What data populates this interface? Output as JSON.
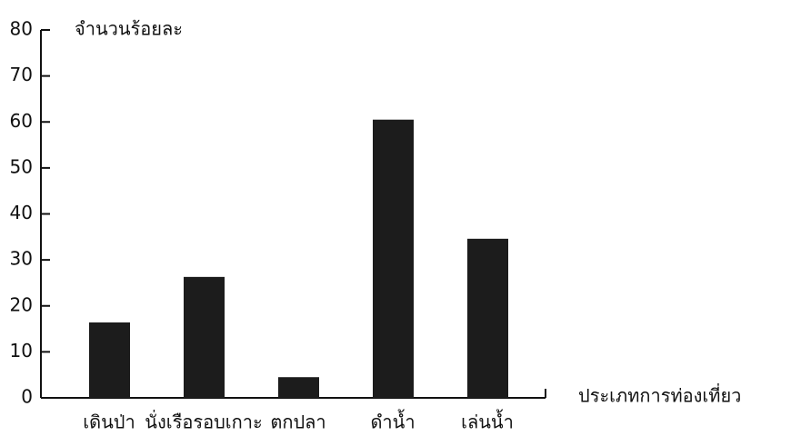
{
  "chart_data": {
    "type": "bar",
    "y_label": "จำนวนร้อยละ",
    "x_label": "ประเภทการท่องเที่ยว",
    "categories": [
      "เดินป่า",
      "นั่งเรือรอบเกาะ",
      "ตกปลา",
      "ดำน้ำ",
      "เล่นน้ำ"
    ],
    "values": [
      16.4,
      26.3,
      4.5,
      60.5,
      34.6
    ],
    "color": "#1c1c1c",
    "ylim": [
      0,
      80
    ],
    "yticks": [
      0,
      10,
      20,
      30,
      40,
      50,
      60,
      70,
      80
    ],
    "grid": false
  }
}
